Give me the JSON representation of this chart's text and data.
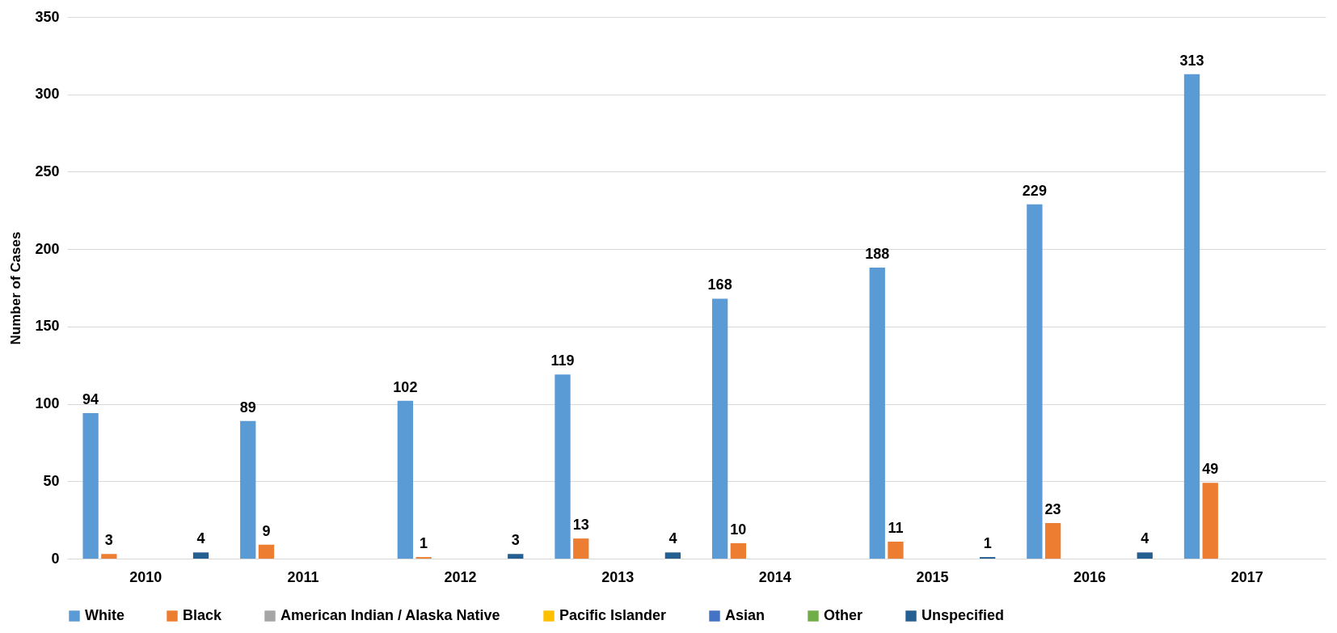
{
  "chart_data": {
    "type": "bar",
    "ylabel": "Number of Cases",
    "categories": [
      "2010",
      "2011",
      "2012",
      "2013",
      "2014",
      "2015",
      "2016",
      "2017"
    ],
    "series": [
      {
        "name": "White",
        "color": "#5b9bd5",
        "values": [
          94,
          89,
          102,
          119,
          168,
          188,
          229,
          313
        ],
        "value_labels": [
          "94",
          "89",
          "102",
          "119",
          "168",
          "188",
          "229",
          "313"
        ]
      },
      {
        "name": "Black",
        "color": "#ed7d31",
        "values": [
          3,
          9,
          1,
          13,
          10,
          11,
          23,
          49
        ],
        "value_labels": [
          "3",
          "9",
          "1",
          "13",
          "10",
          "11",
          "23",
          "49"
        ]
      },
      {
        "name": "American Indian / Alaska Native",
        "color": "#a5a5a5",
        "values": [
          0,
          0,
          0,
          0,
          0,
          0,
          0,
          0
        ]
      },
      {
        "name": "Pacific Islander",
        "color": "#ffc000",
        "values": [
          0,
          0,
          0,
          0,
          0,
          0,
          0,
          0
        ]
      },
      {
        "name": "Asian",
        "color": "#4472c4",
        "values": [
          0,
          0,
          0,
          0,
          0,
          0,
          0,
          0
        ]
      },
      {
        "name": "Other",
        "color": "#70ad47",
        "values": [
          0,
          0,
          0,
          0,
          0,
          0,
          0,
          0
        ]
      },
      {
        "name": "Unspecified",
        "color": "#255e91",
        "values": [
          4,
          0,
          3,
          4,
          0,
          1,
          4,
          0
        ],
        "value_labels": [
          "4",
          null,
          "3",
          "4",
          null,
          "1",
          "4",
          null
        ]
      }
    ],
    "ylim": [
      0,
      350
    ],
    "yticks": [
      0,
      50,
      100,
      150,
      200,
      250,
      300,
      350
    ],
    "grid": "y",
    "legend": "bottom"
  }
}
